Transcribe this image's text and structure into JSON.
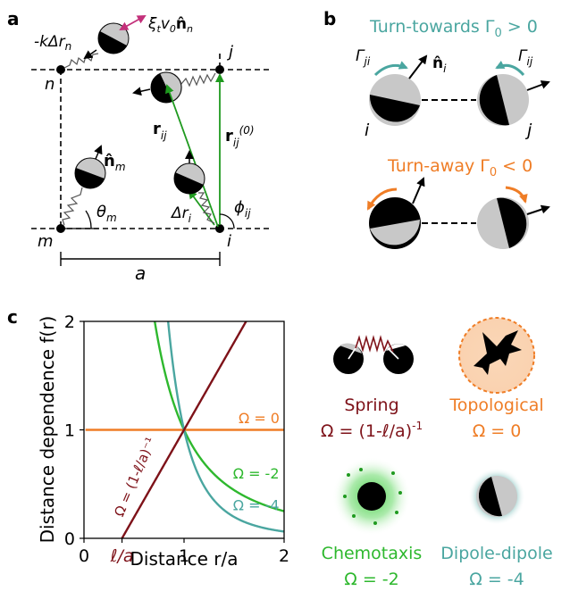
{
  "panel_a": {
    "label": "a",
    "spring_force": "-kΔr",
    "spring_force_sub": "n",
    "self_prop": "ξ",
    "self_prop_mid": "v",
    "self_prop_n": "n̂",
    "self_prop_t": "t",
    "self_prop_0": "0",
    "self_prop_nsub": "n",
    "node_n": "n",
    "node_j": "j",
    "node_m": "m",
    "node_i": "i",
    "r_ij": "r",
    "r_ij_sub": "ij",
    "r_ij0": "r",
    "r_ij0_sub": "ij",
    "r_ij0_sup": "(0)",
    "n_m": "n̂",
    "n_m_sub": "m",
    "theta_m": "θ",
    "theta_m_sub": "m",
    "delta_r": "Δr",
    "delta_r_sub": "i",
    "phi_ij": "ϕ",
    "phi_ij_sub": "ij",
    "spacing": "a"
  },
  "panel_b": {
    "label": "b",
    "turn_towards": "Turn-towards Γ",
    "turn_towards_sub": "0",
    "turn_towards_cond": " > 0",
    "turn_away": "Turn-away Γ",
    "turn_away_sub": "0",
    "turn_away_cond": " < 0",
    "gamma_ji": "Γ",
    "gamma_ji_sub": "ji",
    "gamma_ij": "Γ",
    "gamma_ij_sub": "ij",
    "n_i": "n̂",
    "n_i_sub": "i",
    "node_i": "i",
    "node_j": "j"
  },
  "panel_c": {
    "label": "c",
    "ylabel": "Distance dependence f(r)",
    "xlabel": "Distance r/a",
    "xticks": [
      "0",
      "ℓ/a",
      "1",
      "2"
    ],
    "yticks": [
      "0",
      "1",
      "2"
    ],
    "annotations": {
      "omega0": "Ω = 0",
      "omega_m2": "Ω = -2",
      "omega_m4": "Ω = -4",
      "omega_spring": "Ω = (1-ℓ/a)⁻¹"
    },
    "legend": {
      "spring_title": "Spring",
      "spring_eq": "Ω = (1-ℓ/a)",
      "spring_sup": "-1",
      "topo_title": "Topological",
      "topo_eq": "Ω = 0",
      "chemo_title": "Chemotaxis",
      "chemo_eq": "Ω = -2",
      "dipole_title": "Dipole-dipole",
      "dipole_eq": "Ω = -4"
    }
  },
  "colors": {
    "teal": "#4aa6a0",
    "orange": "#ef7d26",
    "maroon": "#7e1219",
    "green": "#2eb82e",
    "magenta": "#c3307a",
    "arrow_green": "#1f9a1f",
    "grey": "#c8c8c8"
  },
  "chart_data": {
    "type": "line",
    "xlabel": "Distance r/a",
    "ylabel": "Distance dependence f(r)",
    "xlim": [
      0,
      2
    ],
    "ylim": [
      0,
      2
    ],
    "ell_over_a": 0.38,
    "series": [
      {
        "name": "Ω = 0",
        "formula": "f = r^0",
        "color": "#ef7d26",
        "x": [
          0,
          2
        ],
        "y": [
          1,
          1
        ]
      },
      {
        "name": "Ω = -2",
        "formula": "f = r^-2",
        "color": "#2eb82e",
        "x": [
          0.71,
          0.8,
          1,
          1.25,
          1.5,
          2
        ],
        "y": [
          2,
          1.56,
          1,
          0.64,
          0.44,
          0.25
        ]
      },
      {
        "name": "Ω = -4",
        "formula": "f = r^-4",
        "color": "#4aa6a0",
        "x": [
          0.84,
          0.9,
          1,
          1.25,
          1.5,
          2
        ],
        "y": [
          2,
          1.52,
          1,
          0.41,
          0.2,
          0.06
        ]
      },
      {
        "name": "Ω = (1-ℓ/a)⁻¹",
        "formula": "f = (r-ℓ/a)/(1-ℓ/a)",
        "color": "#7e1219",
        "x": [
          0.38,
          1,
          1.62
        ],
        "y": [
          0,
          1,
          2
        ]
      }
    ]
  }
}
